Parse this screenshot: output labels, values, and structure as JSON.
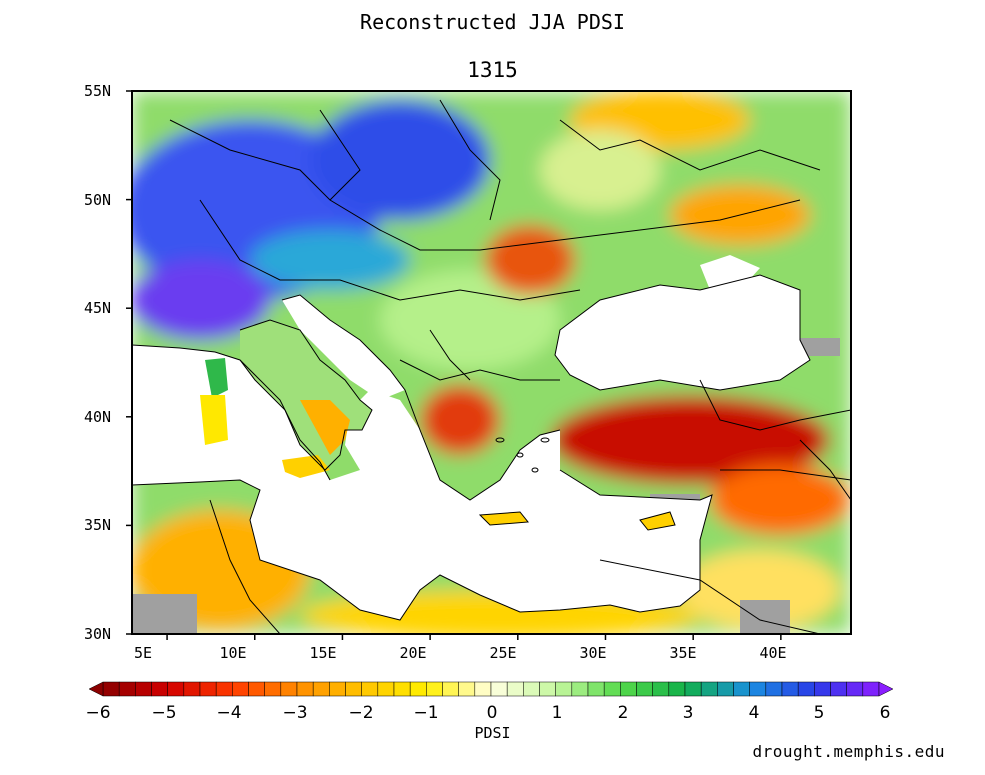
{
  "title": "Reconstructed JJA PDSI",
  "year": "1315",
  "map": {
    "lat_labels": [
      "55N",
      "50N",
      "45N",
      "40N",
      "35N",
      "30N"
    ],
    "lon_labels": [
      "5E",
      "10E",
      "15E",
      "20E",
      "25E",
      "30E",
      "35E",
      "40E"
    ],
    "lat_range": [
      30,
      55
    ],
    "lon_range": [
      3,
      44
    ],
    "missing_color": "#a0a0a0",
    "sea_color": "#ffffff"
  },
  "colorbar": {
    "label": "PDSI",
    "tick_labels": [
      "−6",
      "−5",
      "−4",
      "−3",
      "−2",
      "−1",
      "0",
      "1",
      "2",
      "3",
      "4",
      "5",
      "6"
    ],
    "range": [
      -6,
      6
    ],
    "stops": [
      "#8b0000",
      "#d10000",
      "#ff3a00",
      "#ff8c00",
      "#ffc400",
      "#ffef00",
      "#ffffe0",
      "#c6f7a0",
      "#55d94a",
      "#12b04a",
      "#1a8fe0",
      "#2a3ce8",
      "#8a1eff"
    ]
  },
  "credit": "drought.memphis.edu"
}
